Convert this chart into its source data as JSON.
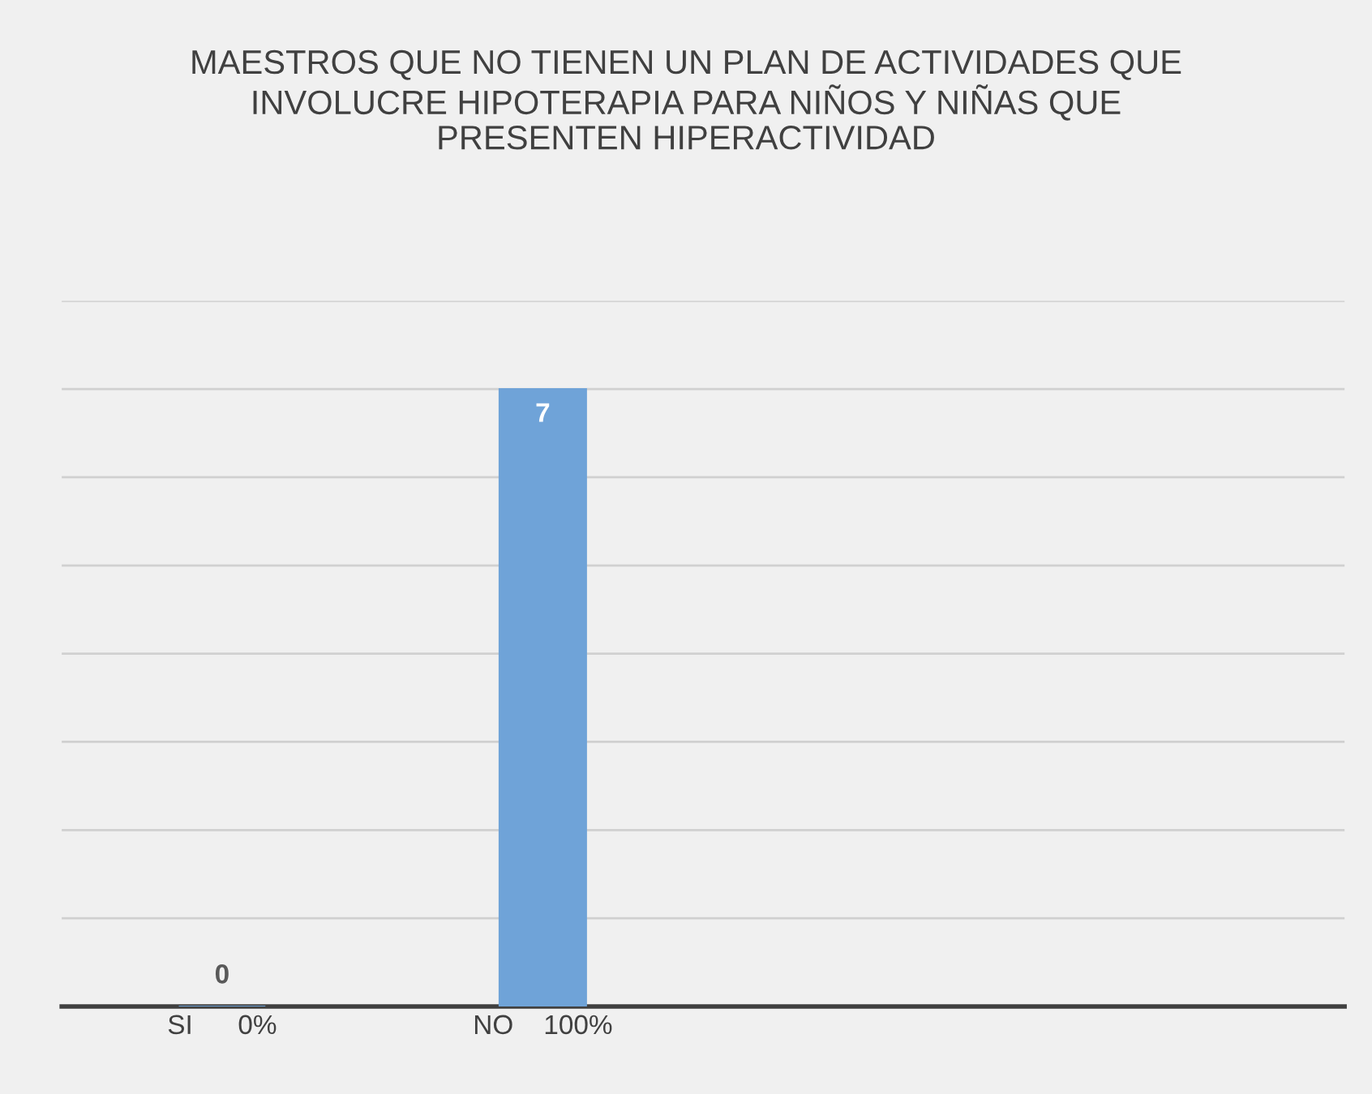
{
  "chart_data": {
    "type": "bar",
    "title": "MAESTROS QUE NO TIENEN UN PLAN DE ACTIVIDADES QUE\nINVOLUCRE HIPOTERAPIA PARA NIÑOS Y NIÑAS QUE\nPRESENTEN HIPERACTIVIDAD",
    "categories": [
      "SI      0%",
      "NO    100%",
      null,
      null
    ],
    "values": [
      0,
      7,
      null,
      null
    ],
    "color": "#6fa3d8",
    "ylim": [
      0,
      8
    ],
    "yticks": [
      {
        "value": 0,
        "label": null
      },
      {
        "value": 1,
        "label": null
      },
      {
        "value": 2,
        "label": null
      },
      {
        "value": 3,
        "label": null
      },
      {
        "value": 4,
        "label": null
      },
      {
        "value": 5,
        "label": null
      },
      {
        "value": 6,
        "label": null
      },
      {
        "value": 7,
        "label": null
      },
      {
        "value": 8,
        "label": null
      }
    ],
    "tick_labels": "x",
    "grid": "y",
    "data_labels": true
  }
}
